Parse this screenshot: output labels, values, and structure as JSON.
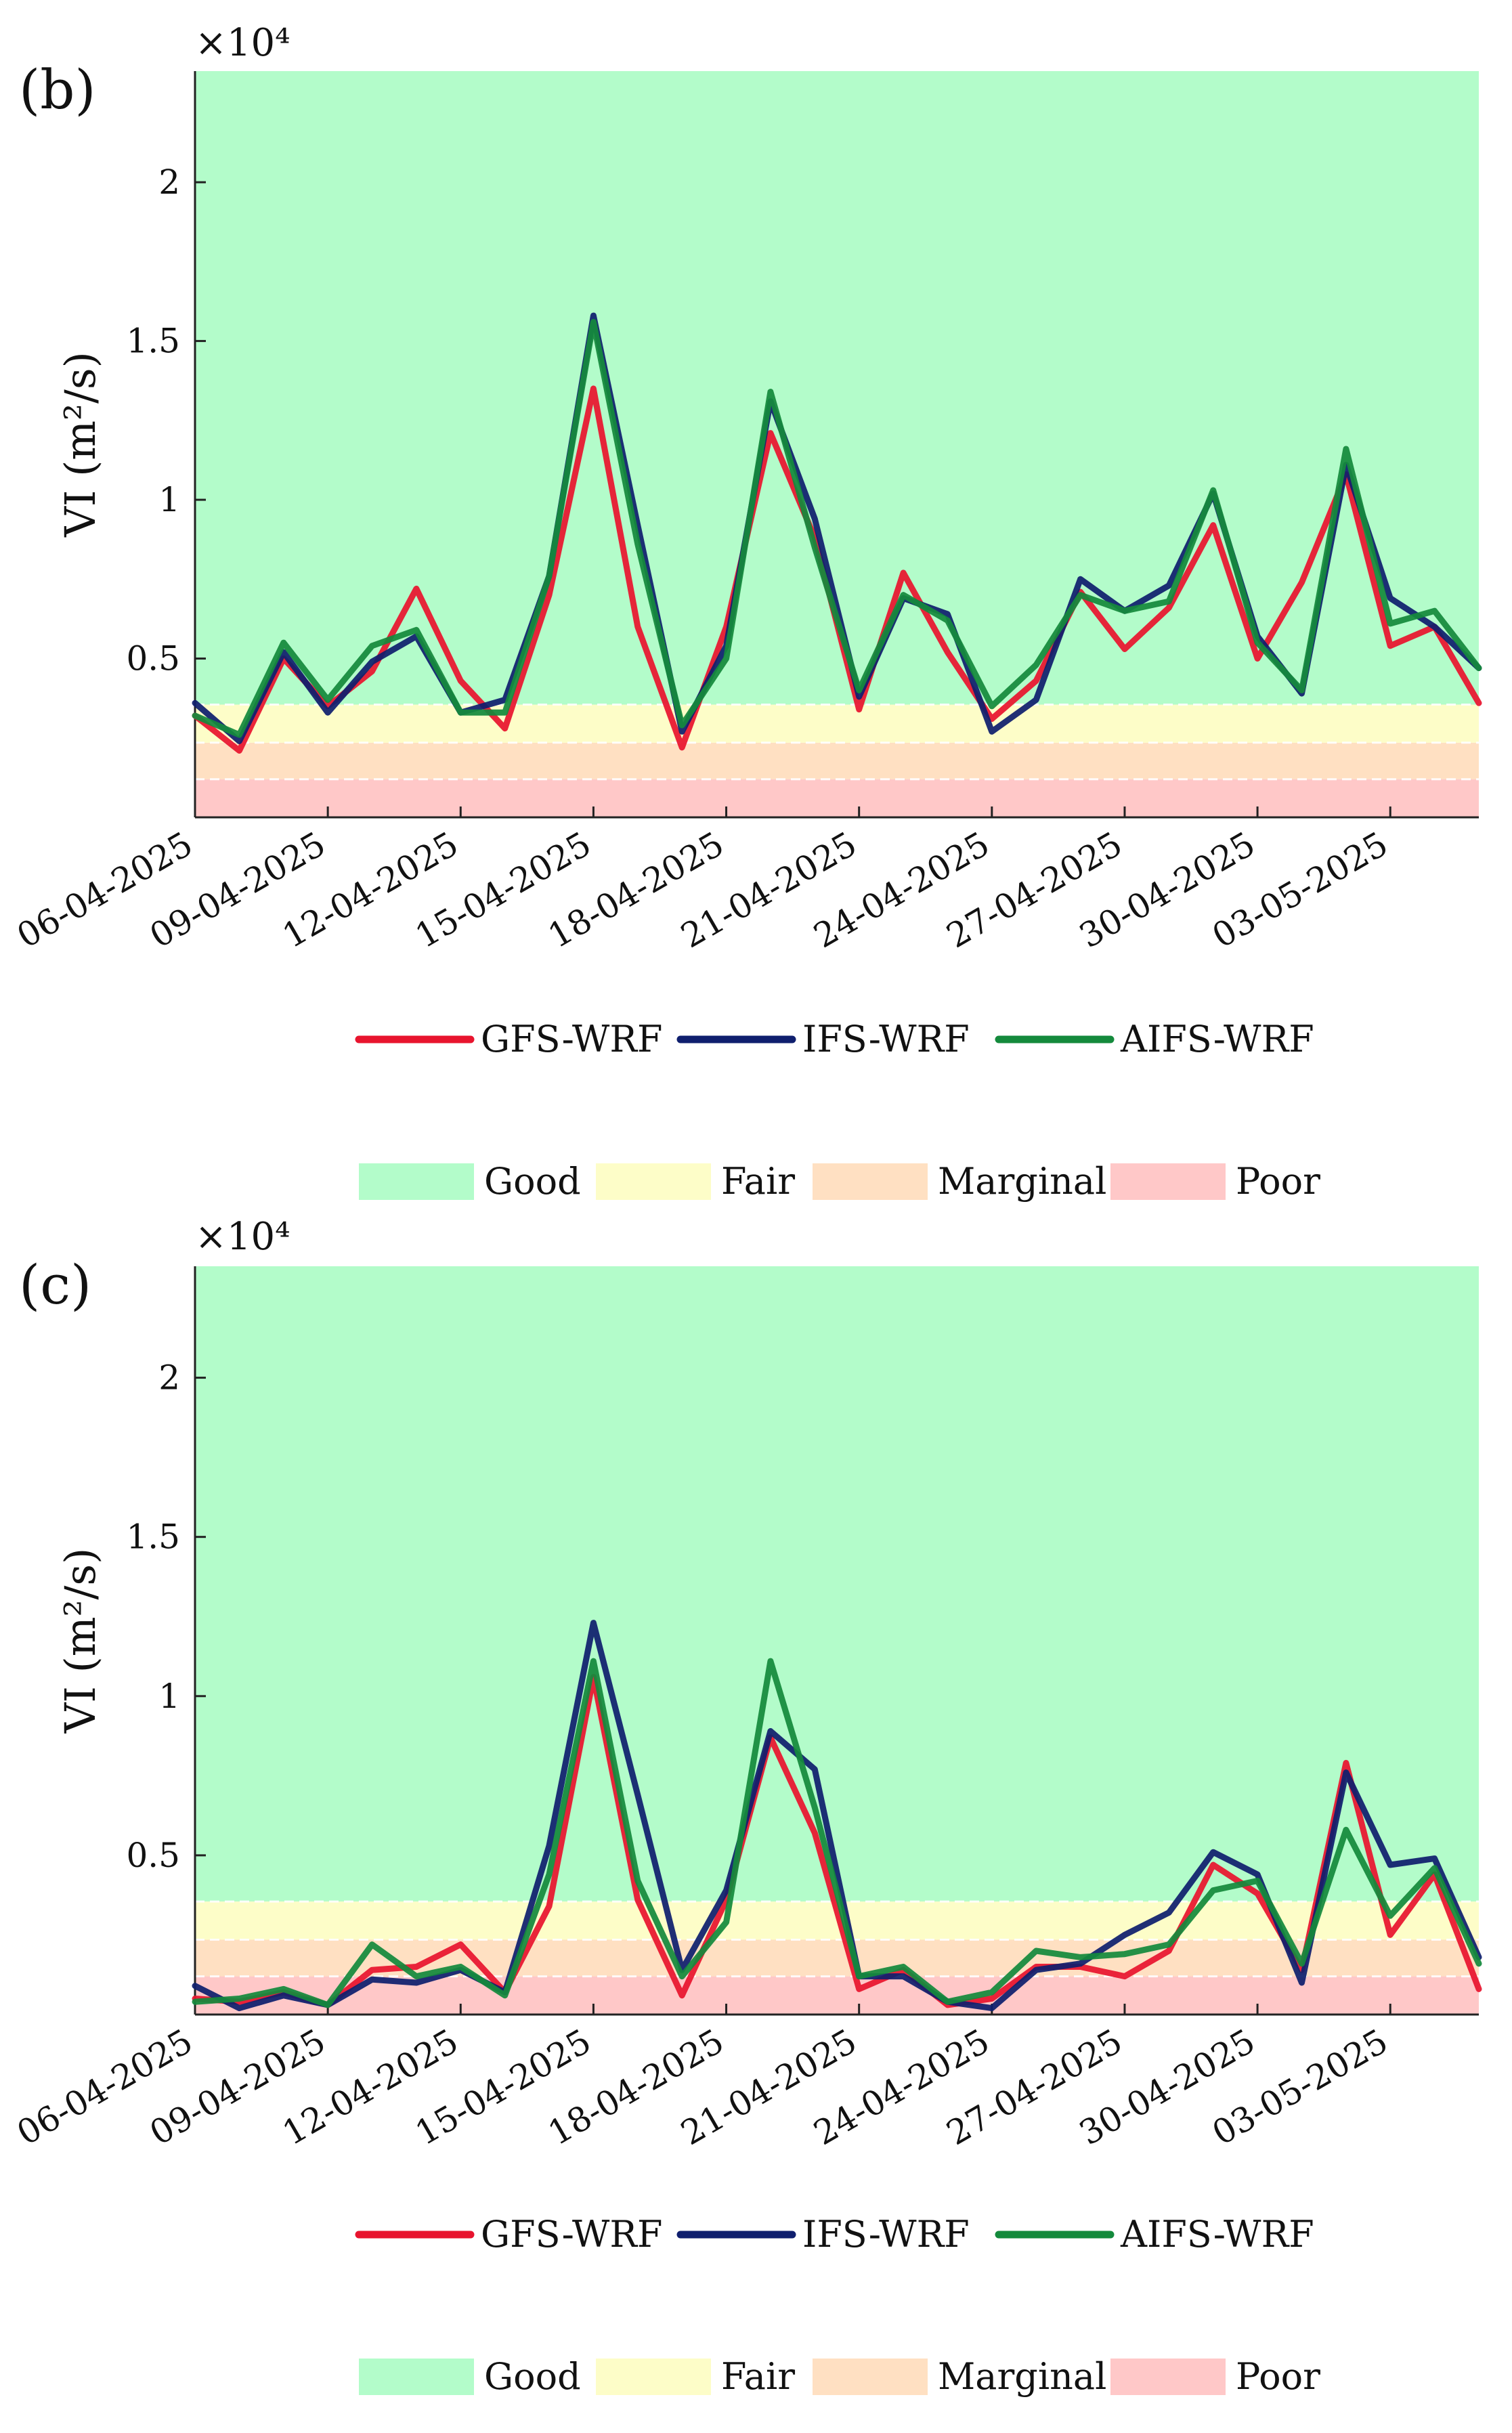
{
  "colors": {
    "gfs": "#e8142e",
    "ifs": "#0f1f6e",
    "aifs": "#148a3c",
    "good": "#b3fcca",
    "fair": "#fdfdc8",
    "marginal": "#ffe0c2",
    "poor": "#ffc8c8"
  },
  "chart_data": [
    {
      "type": "line",
      "panel_label": "(b)",
      "ylabel": "VI (m²/s)",
      "multiplier": "×10⁴",
      "ylim": [
        0,
        23500
      ],
      "yticks": [
        {
          "value": 5000,
          "label": "0.5"
        },
        {
          "value": 10000,
          "label": "1"
        },
        {
          "value": 15000,
          "label": "1.5"
        },
        {
          "value": 20000,
          "label": "2"
        }
      ],
      "xtick_labels": [
        "06-04-2025",
        "09-04-2025",
        "12-04-2025",
        "15-04-2025",
        "18-04-2025",
        "21-04-2025",
        "24-04-2025",
        "27-04-2025",
        "30-04-2025",
        "03-05-2025"
      ],
      "x": [
        0,
        1,
        2,
        3,
        4,
        5,
        6,
        7,
        8,
        9,
        10,
        11,
        12,
        13,
        14,
        15,
        16,
        17,
        18,
        19,
        20,
        21,
        22,
        23,
        24,
        25,
        26,
        27,
        28,
        29
      ],
      "bands": [
        {
          "name": "Poor",
          "from": 0,
          "to": 1200
        },
        {
          "name": "Marginal",
          "from": 1200,
          "to": 2350
        },
        {
          "name": "Fair",
          "from": 2350,
          "to": 3550
        },
        {
          "name": "Good",
          "from": 3550,
          "to": 23500
        }
      ],
      "series": [
        {
          "name": "GFS-WRF",
          "key": "gfs",
          "values": [
            3200,
            2100,
            5000,
            3500,
            4600,
            7200,
            4300,
            2800,
            7000,
            13500,
            6000,
            2200,
            6000,
            12100,
            8800,
            3400,
            7700,
            5200,
            3100,
            4300,
            7100,
            5300,
            6600,
            9200,
            5000,
            7400,
            10800,
            5400,
            6000,
            3600
          ]
        },
        {
          "name": "IFS-WRF",
          "key": "ifs",
          "values": [
            3600,
            2400,
            5200,
            3300,
            4900,
            5700,
            3300,
            3700,
            7600,
            15800,
            9200,
            2700,
            5400,
            13100,
            9400,
            3800,
            6900,
            6400,
            2700,
            3700,
            7500,
            6500,
            7300,
            10200,
            5700,
            3900,
            11100,
            6900,
            6000,
            4700
          ]
        },
        {
          "name": "AIFS-WRF",
          "key": "aifs",
          "values": [
            3200,
            2600,
            5500,
            3700,
            5400,
            5900,
            3300,
            3300,
            7600,
            15600,
            8600,
            2900,
            5000,
            13400,
            8500,
            4000,
            7000,
            6200,
            3500,
            4800,
            7000,
            6500,
            6800,
            10300,
            5500,
            4000,
            11600,
            6100,
            6500,
            4700
          ]
        }
      ]
    },
    {
      "type": "line",
      "panel_label": "(c)",
      "ylabel": "VI (m²/s)",
      "multiplier": "×10⁴",
      "ylim": [
        0,
        23500
      ],
      "yticks": [
        {
          "value": 5000,
          "label": "0.5"
        },
        {
          "value": 10000,
          "label": "1"
        },
        {
          "value": 15000,
          "label": "1.5"
        },
        {
          "value": 20000,
          "label": "2"
        }
      ],
      "xtick_labels": [
        "06-04-2025",
        "09-04-2025",
        "12-04-2025",
        "15-04-2025",
        "18-04-2025",
        "21-04-2025",
        "24-04-2025",
        "27-04-2025",
        "30-04-2025",
        "03-05-2025"
      ],
      "x": [
        0,
        1,
        2,
        3,
        4,
        5,
        6,
        7,
        8,
        9,
        10,
        11,
        12,
        13,
        14,
        15,
        16,
        17,
        18,
        19,
        20,
        21,
        22,
        23,
        24,
        25,
        26,
        27,
        28,
        29
      ],
      "bands": [
        {
          "name": "Poor",
          "from": 0,
          "to": 1200
        },
        {
          "name": "Marginal",
          "from": 1200,
          "to": 2350
        },
        {
          "name": "Fair",
          "from": 2350,
          "to": 3550
        },
        {
          "name": "Good",
          "from": 3550,
          "to": 23500
        }
      ],
      "series": [
        {
          "name": "GFS-WRF",
          "key": "gfs",
          "values": [
            500,
            400,
            700,
            300,
            1400,
            1500,
            2200,
            700,
            3400,
            10600,
            3600,
            600,
            3600,
            8700,
            5700,
            800,
            1400,
            300,
            500,
            1500,
            1500,
            1200,
            2000,
            4700,
            3800,
            1400,
            7900,
            2500,
            4400,
            800
          ]
        },
        {
          "name": "IFS-WRF",
          "key": "ifs",
          "values": [
            900,
            200,
            600,
            300,
            1100,
            1000,
            1400,
            700,
            5300,
            12300,
            6900,
            1400,
            3900,
            8900,
            7700,
            1200,
            1200,
            400,
            200,
            1400,
            1600,
            2500,
            3200,
            5100,
            4400,
            1000,
            7600,
            4700,
            4900,
            1800
          ]
        },
        {
          "name": "AIFS-WRF",
          "key": "aifs",
          "values": [
            400,
            500,
            800,
            300,
            2200,
            1200,
            1500,
            600,
            4400,
            11100,
            4200,
            1200,
            2900,
            11100,
            6500,
            1200,
            1500,
            400,
            700,
            2000,
            1800,
            1900,
            2200,
            3900,
            4200,
            1600,
            5800,
            3100,
            4600,
            1600
          ]
        }
      ]
    }
  ],
  "legends": [
    {
      "lines": [
        {
          "key": "gfs",
          "label": "GFS-WRF"
        },
        {
          "key": "ifs",
          "label": "IFS-WRF"
        },
        {
          "key": "aifs",
          "label": "AIFS-WRF"
        }
      ],
      "bands": [
        {
          "key": "good",
          "label": "Good"
        },
        {
          "key": "fair",
          "label": "Fair"
        },
        {
          "key": "marginal",
          "label": "Marginal"
        },
        {
          "key": "poor",
          "label": "Poor"
        }
      ]
    },
    {
      "lines": [
        {
          "key": "gfs",
          "label": "GFS-WRF"
        },
        {
          "key": "ifs",
          "label": "IFS-WRF"
        },
        {
          "key": "aifs",
          "label": "AIFS-WRF"
        }
      ],
      "bands": [
        {
          "key": "good",
          "label": "Good"
        },
        {
          "key": "fair",
          "label": "Fair"
        },
        {
          "key": "marginal",
          "label": "Marginal"
        },
        {
          "key": "poor",
          "label": "Poor"
        }
      ]
    }
  ]
}
